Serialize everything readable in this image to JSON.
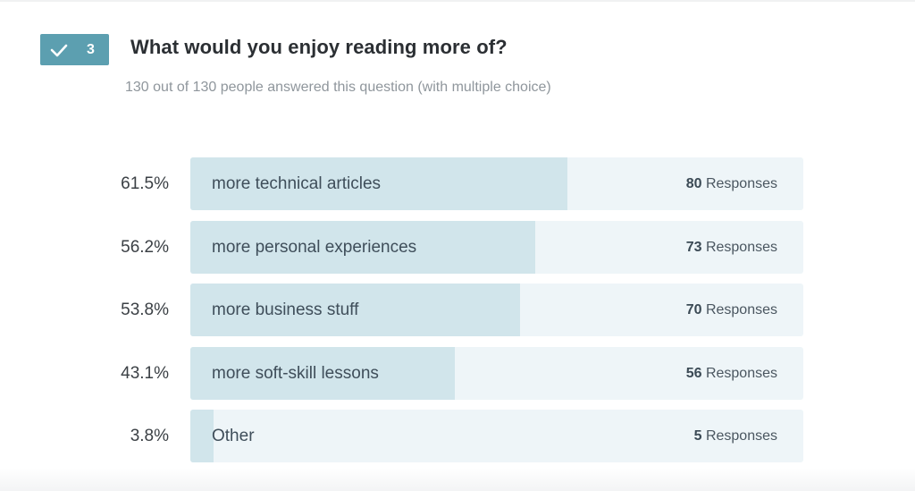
{
  "question": {
    "number": "3",
    "title": "What would you enjoy reading more of?",
    "subtitle": "130 out of 130 people answered this question (with multiple choice)",
    "badge_icon": "check-icon",
    "badge_color": "#5c9fb0"
  },
  "colors": {
    "track": "#eef5f8",
    "fill": "#d1e5eb"
  },
  "chart_data": {
    "type": "bar",
    "orientation": "horizontal",
    "value_unit": "percent",
    "xlim": [
      0,
      100
    ],
    "response_label": "Responses",
    "categories": [
      "more technical articles",
      "more personal experiences",
      "more business stuff",
      "more soft-skill lessons",
      "Other"
    ],
    "percent_labels": [
      "61.5%",
      "56.2%",
      "53.8%",
      "43.1%",
      "3.8%"
    ],
    "values": [
      61.5,
      56.2,
      53.8,
      43.1,
      3.8
    ],
    "responses": [
      80,
      73,
      70,
      56,
      5
    ]
  }
}
